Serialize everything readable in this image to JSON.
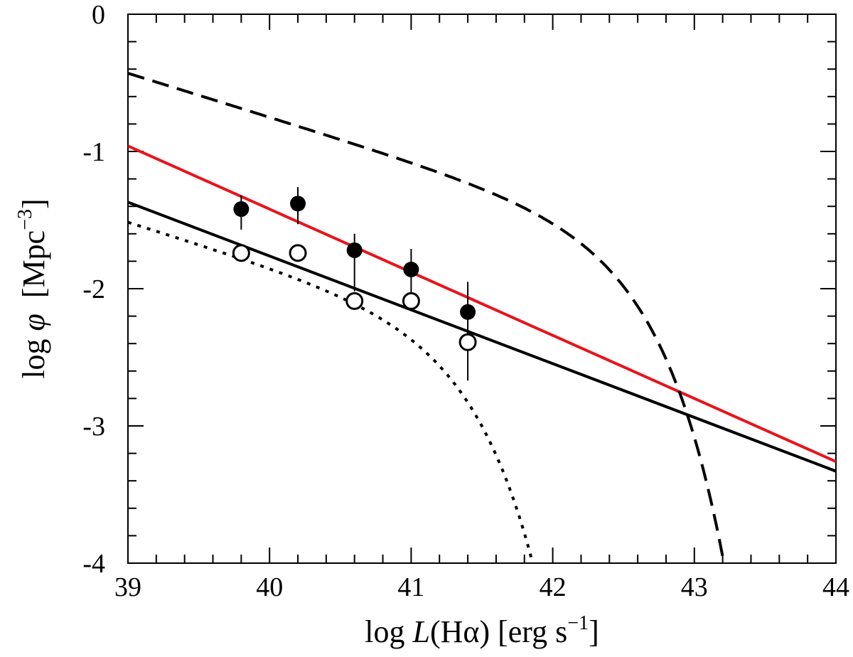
{
  "chart_data": {
    "type": "scatter",
    "title": "",
    "xlabel": {
      "prefix": "log ",
      "var": "L",
      "open": "(H",
      "greek": "α",
      "close": ") [erg s",
      "sup": "−1",
      "end": "]"
    },
    "ylabel": {
      "prefix": "log ",
      "var": "φ",
      "unit": "  [Mpc",
      "sup": "−3",
      "end": "]"
    },
    "xlim": [
      39,
      44
    ],
    "ylim": [
      -4,
      0
    ],
    "x_ticks": [
      "39",
      "40",
      "41",
      "42",
      "43",
      "44"
    ],
    "y_ticks": [
      "-4",
      "-3",
      "-2",
      "-1",
      "0"
    ],
    "grid": false,
    "series": [
      {
        "name": "filled points",
        "marker": "filled-circle",
        "points": [
          {
            "x": 39.8,
            "y": -1.42,
            "err_lo": 0.15,
            "err_hi": 0.1
          },
          {
            "x": 40.2,
            "y": -1.38,
            "err_lo": 0.15,
            "err_hi": 0.12
          },
          {
            "x": 40.6,
            "y": -1.72,
            "err_lo": 0.3,
            "err_hi": 0.12
          },
          {
            "x": 41.0,
            "y": -1.86,
            "err_lo": 0.2,
            "err_hi": 0.15
          },
          {
            "x": 41.4,
            "y": -2.17,
            "err_lo": 0.5,
            "err_hi": 0.22
          }
        ]
      },
      {
        "name": "open points",
        "marker": "open-circle",
        "points": [
          {
            "x": 39.8,
            "y": -1.74
          },
          {
            "x": 40.2,
            "y": -1.74
          },
          {
            "x": 40.6,
            "y": -2.09
          },
          {
            "x": 41.0,
            "y": -2.09
          },
          {
            "x": 41.4,
            "y": -2.39
          }
        ]
      }
    ],
    "lines": [
      {
        "name": "red power-law fit",
        "style": "solid",
        "color": "#e8141c",
        "kind": "linear",
        "x0": 39,
        "y0": -0.96,
        "x1": 44,
        "y1": -3.26
      },
      {
        "name": "black power-law fit",
        "style": "solid",
        "color": "#000000",
        "kind": "linear",
        "x0": 39,
        "y0": -1.37,
        "x1": 44,
        "y1": -3.33
      },
      {
        "name": "dashed Schechter function",
        "style": "dashed",
        "color": "#000000",
        "kind": "schechter",
        "log_phi_star": -1.55,
        "log_L_star": 42.5,
        "alpha": -1.32,
        "x_from": 39,
        "x_to": 44
      },
      {
        "name": "dotted Schechter function",
        "style": "dotted",
        "color": "#000000",
        "kind": "schechter",
        "log_phi_star": -2.25,
        "log_L_star": 41.3,
        "alpha": -1.32,
        "x_from": 39,
        "x_to": 44
      }
    ]
  }
}
